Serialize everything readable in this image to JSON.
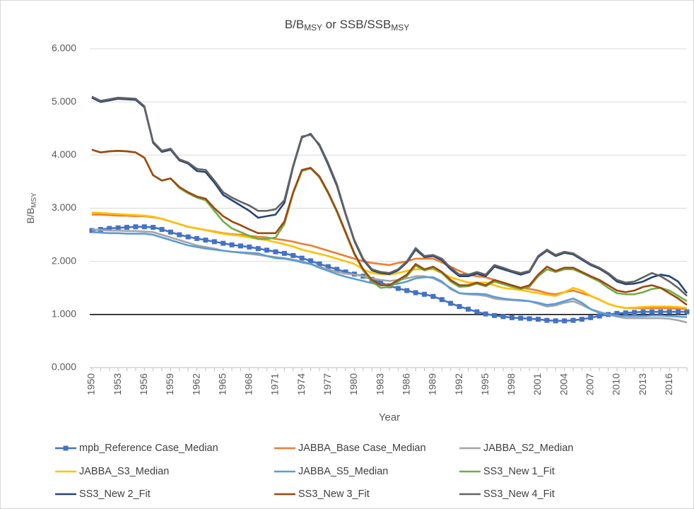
{
  "chart_data": {
    "type": "line",
    "title": [
      {
        "text": "B/B"
      },
      {
        "text": "MSY",
        "subscript": true
      },
      {
        "text": " or SSB/SSB"
      },
      {
        "text": "MSY",
        "subscript": true
      }
    ],
    "y_label": [
      {
        "text": "B/B"
      },
      {
        "text": "MSY",
        "subscript": true
      }
    ],
    "x_label": "Year",
    "x": [
      1950,
      1951,
      1952,
      1953,
      1954,
      1955,
      1956,
      1957,
      1958,
      1959,
      1960,
      1961,
      1962,
      1963,
      1964,
      1965,
      1966,
      1967,
      1968,
      1969,
      1970,
      1971,
      1972,
      1973,
      1974,
      1975,
      1976,
      1977,
      1978,
      1979,
      1980,
      1981,
      1982,
      1983,
      1984,
      1985,
      1986,
      1987,
      1988,
      1989,
      1990,
      1991,
      1992,
      1993,
      1994,
      1995,
      1996,
      1997,
      1998,
      1999,
      2000,
      2001,
      2002,
      2003,
      2004,
      2005,
      2006,
      2007,
      2008,
      2009,
      2010,
      2011,
      2012,
      2013,
      2014,
      2015,
      2016,
      2017,
      2018
    ],
    "xlim": [
      1950,
      2018
    ],
    "xticks": [
      1950,
      1953,
      1956,
      1959,
      1962,
      1965,
      1968,
      1971,
      1974,
      1977,
      1980,
      1983,
      1986,
      1989,
      1992,
      1995,
      1998,
      2001,
      2004,
      2007,
      2010,
      2013,
      2016
    ],
    "ylim": [
      0,
      6
    ],
    "yticks": [
      {
        "value": 0,
        "label": "0.000"
      },
      {
        "value": 1,
        "label": "1.000"
      },
      {
        "value": 2,
        "label": "2.000"
      },
      {
        "value": 3,
        "label": "3.000"
      },
      {
        "value": 4,
        "label": "4.000"
      },
      {
        "value": 5,
        "label": "5.000"
      },
      {
        "value": 6,
        "label": "6.000"
      }
    ],
    "grid": true,
    "reference_line": {
      "value": 1,
      "color": "#000000"
    },
    "legend": "bottom",
    "series": [
      {
        "name": "mpb_Reference Case_Median",
        "color": "#4472c4",
        "marker": "square",
        "values": [
          2.58,
          2.6,
          2.62,
          2.63,
          2.64,
          2.65,
          2.65,
          2.64,
          2.6,
          2.55,
          2.5,
          2.46,
          2.43,
          2.4,
          2.37,
          2.34,
          2.31,
          2.29,
          2.27,
          2.24,
          2.21,
          2.18,
          2.15,
          2.11,
          2.06,
          2.01,
          1.95,
          1.9,
          1.85,
          1.8,
          1.76,
          1.72,
          1.66,
          1.6,
          1.54,
          1.49,
          1.45,
          1.41,
          1.38,
          1.34,
          1.28,
          1.21,
          1.15,
          1.1,
          1.05,
          1.01,
          0.98,
          0.96,
          0.94,
          0.93,
          0.92,
          0.91,
          0.89,
          0.88,
          0.88,
          0.89,
          0.91,
          0.94,
          0.97,
          1.0,
          1.02,
          1.03,
          1.04,
          1.05,
          1.05,
          1.05,
          1.05,
          1.05,
          1.05
        ]
      },
      {
        "name": "JABBA_Base Case_Median",
        "color": "#ed7d31",
        "values": [
          2.88,
          2.88,
          2.87,
          2.86,
          2.86,
          2.85,
          2.85,
          2.83,
          2.8,
          2.75,
          2.7,
          2.65,
          2.62,
          2.59,
          2.56,
          2.53,
          2.51,
          2.5,
          2.48,
          2.46,
          2.45,
          2.42,
          2.4,
          2.37,
          2.33,
          2.3,
          2.25,
          2.2,
          2.15,
          2.1,
          2.05,
          2.0,
          1.97,
          1.95,
          1.93,
          1.97,
          2.0,
          2.05,
          2.05,
          2.05,
          1.98,
          1.9,
          1.82,
          1.75,
          1.72,
          1.7,
          1.65,
          1.6,
          1.55,
          1.5,
          1.48,
          1.45,
          1.4,
          1.38,
          1.42,
          1.45,
          1.4,
          1.35,
          1.28,
          1.2,
          1.15,
          1.12,
          1.12,
          1.12,
          1.12,
          1.12,
          1.12,
          1.11,
          1.1
        ]
      },
      {
        "name": "JABBA_S2_Median",
        "color": "#a5a5a5",
        "values": [
          2.6,
          2.59,
          2.58,
          2.58,
          2.57,
          2.57,
          2.56,
          2.55,
          2.5,
          2.45,
          2.4,
          2.35,
          2.3,
          2.27,
          2.24,
          2.2,
          2.18,
          2.16,
          2.14,
          2.12,
          2.1,
          2.08,
          2.06,
          2.03,
          2.0,
          1.95,
          1.9,
          1.85,
          1.8,
          1.77,
          1.75,
          1.72,
          1.68,
          1.65,
          1.63,
          1.65,
          1.68,
          1.72,
          1.72,
          1.68,
          1.6,
          1.5,
          1.4,
          1.38,
          1.37,
          1.35,
          1.3,
          1.28,
          1.27,
          1.26,
          1.25,
          1.2,
          1.15,
          1.17,
          1.22,
          1.25,
          1.18,
          1.1,
          1.05,
          1.0,
          0.96,
          0.93,
          0.93,
          0.93,
          0.93,
          0.93,
          0.92,
          0.89,
          0.85
        ]
      },
      {
        "name": "JABBA_S3_Median",
        "color": "#ffc000",
        "values": [
          2.92,
          2.91,
          2.9,
          2.89,
          2.88,
          2.87,
          2.86,
          2.84,
          2.8,
          2.75,
          2.7,
          2.65,
          2.62,
          2.59,
          2.55,
          2.52,
          2.5,
          2.48,
          2.45,
          2.42,
          2.4,
          2.36,
          2.32,
          2.28,
          2.22,
          2.18,
          2.14,
          2.1,
          2.05,
          2.0,
          1.95,
          1.85,
          1.78,
          1.76,
          1.75,
          1.78,
          1.82,
          1.85,
          1.85,
          1.85,
          1.78,
          1.7,
          1.65,
          1.6,
          1.6,
          1.6,
          1.55,
          1.5,
          1.48,
          1.46,
          1.43,
          1.4,
          1.37,
          1.35,
          1.42,
          1.5,
          1.45,
          1.35,
          1.28,
          1.2,
          1.15,
          1.12,
          1.13,
          1.14,
          1.15,
          1.15,
          1.15,
          1.14,
          1.12
        ]
      },
      {
        "name": "JABBA_S5_Median",
        "color": "#5b9bd5",
        "values": [
          2.55,
          2.54,
          2.53,
          2.53,
          2.52,
          2.52,
          2.52,
          2.5,
          2.45,
          2.4,
          2.35,
          2.3,
          2.27,
          2.24,
          2.22,
          2.2,
          2.18,
          2.17,
          2.16,
          2.15,
          2.1,
          2.06,
          2.05,
          2.02,
          1.98,
          1.95,
          1.88,
          1.82,
          1.76,
          1.71,
          1.67,
          1.63,
          1.59,
          1.56,
          1.55,
          1.58,
          1.62,
          1.68,
          1.7,
          1.7,
          1.62,
          1.48,
          1.4,
          1.39,
          1.39,
          1.38,
          1.33,
          1.3,
          1.28,
          1.27,
          1.25,
          1.22,
          1.18,
          1.2,
          1.25,
          1.3,
          1.22,
          1.1,
          1.03,
          1.0,
          0.98,
          0.97,
          0.97,
          0.97,
          0.98,
          0.98,
          0.97,
          0.96,
          0.95
        ]
      },
      {
        "name": "SS3_New 1_Fit",
        "color": "#70ad47",
        "values": [
          4.1,
          4.05,
          4.07,
          4.08,
          4.07,
          4.05,
          3.95,
          3.62,
          3.52,
          3.56,
          3.38,
          3.28,
          3.2,
          3.15,
          2.95,
          2.75,
          2.62,
          2.55,
          2.48,
          2.42,
          2.42,
          2.45,
          2.7,
          3.28,
          3.7,
          3.75,
          3.58,
          3.28,
          2.93,
          2.53,
          2.13,
          1.83,
          1.62,
          1.5,
          1.52,
          1.62,
          1.72,
          1.92,
          1.83,
          1.88,
          1.78,
          1.62,
          1.52,
          1.53,
          1.58,
          1.53,
          1.62,
          1.57,
          1.52,
          1.48,
          1.52,
          1.72,
          1.85,
          1.8,
          1.85,
          1.85,
          1.78,
          1.7,
          1.62,
          1.5,
          1.4,
          1.38,
          1.38,
          1.42,
          1.48,
          1.5,
          1.45,
          1.35,
          1.25
        ]
      },
      {
        "name": "SS3_New 2_Fit",
        "color": "#264478",
        "values": [
          5.08,
          5.0,
          5.03,
          5.06,
          5.05,
          5.04,
          4.9,
          4.23,
          4.06,
          4.1,
          3.9,
          3.84,
          3.7,
          3.68,
          3.48,
          3.25,
          3.15,
          3.05,
          2.95,
          2.82,
          2.85,
          2.88,
          3.1,
          3.78,
          4.33,
          4.4,
          4.18,
          3.82,
          3.42,
          2.88,
          2.38,
          2.03,
          1.83,
          1.78,
          1.76,
          1.83,
          1.98,
          2.22,
          2.08,
          2.1,
          2.02,
          1.85,
          1.72,
          1.72,
          1.77,
          1.72,
          1.9,
          1.85,
          1.8,
          1.75,
          1.8,
          2.08,
          2.2,
          2.1,
          2.16,
          2.13,
          2.03,
          1.93,
          1.86,
          1.76,
          1.62,
          1.57,
          1.58,
          1.62,
          1.7,
          1.75,
          1.72,
          1.62,
          1.4
        ]
      },
      {
        "name": "SS3_New 3_Fit",
        "color": "#9e480e",
        "values": [
          4.1,
          4.05,
          4.07,
          4.08,
          4.07,
          4.05,
          3.95,
          3.62,
          3.52,
          3.56,
          3.4,
          3.3,
          3.22,
          3.18,
          3.0,
          2.85,
          2.75,
          2.68,
          2.6,
          2.53,
          2.53,
          2.53,
          2.75,
          3.3,
          3.72,
          3.76,
          3.6,
          3.3,
          2.95,
          2.55,
          2.15,
          1.85,
          1.65,
          1.55,
          1.55,
          1.65,
          1.75,
          1.95,
          1.85,
          1.9,
          1.8,
          1.65,
          1.55,
          1.55,
          1.6,
          1.55,
          1.65,
          1.6,
          1.55,
          1.5,
          1.55,
          1.75,
          1.9,
          1.82,
          1.88,
          1.88,
          1.8,
          1.72,
          1.65,
          1.55,
          1.45,
          1.42,
          1.45,
          1.52,
          1.55,
          1.5,
          1.4,
          1.3,
          1.18
        ]
      },
      {
        "name": "SS3_New 4_Fit",
        "color": "#636363",
        "values": [
          5.1,
          5.02,
          5.05,
          5.08,
          5.07,
          5.06,
          4.92,
          4.25,
          4.08,
          4.12,
          3.92,
          3.86,
          3.74,
          3.72,
          3.52,
          3.3,
          3.2,
          3.12,
          3.05,
          2.95,
          2.95,
          2.98,
          3.15,
          3.8,
          4.35,
          4.38,
          4.2,
          3.85,
          3.45,
          2.9,
          2.4,
          2.05,
          1.85,
          1.8,
          1.78,
          1.85,
          2.0,
          2.25,
          2.1,
          2.12,
          2.05,
          1.88,
          1.75,
          1.75,
          1.8,
          1.75,
          1.93,
          1.88,
          1.82,
          1.78,
          1.82,
          2.1,
          2.22,
          2.12,
          2.18,
          2.15,
          2.05,
          1.95,
          1.88,
          1.78,
          1.65,
          1.6,
          1.62,
          1.7,
          1.78,
          1.72,
          1.62,
          1.5,
          1.35
        ]
      }
    ]
  }
}
